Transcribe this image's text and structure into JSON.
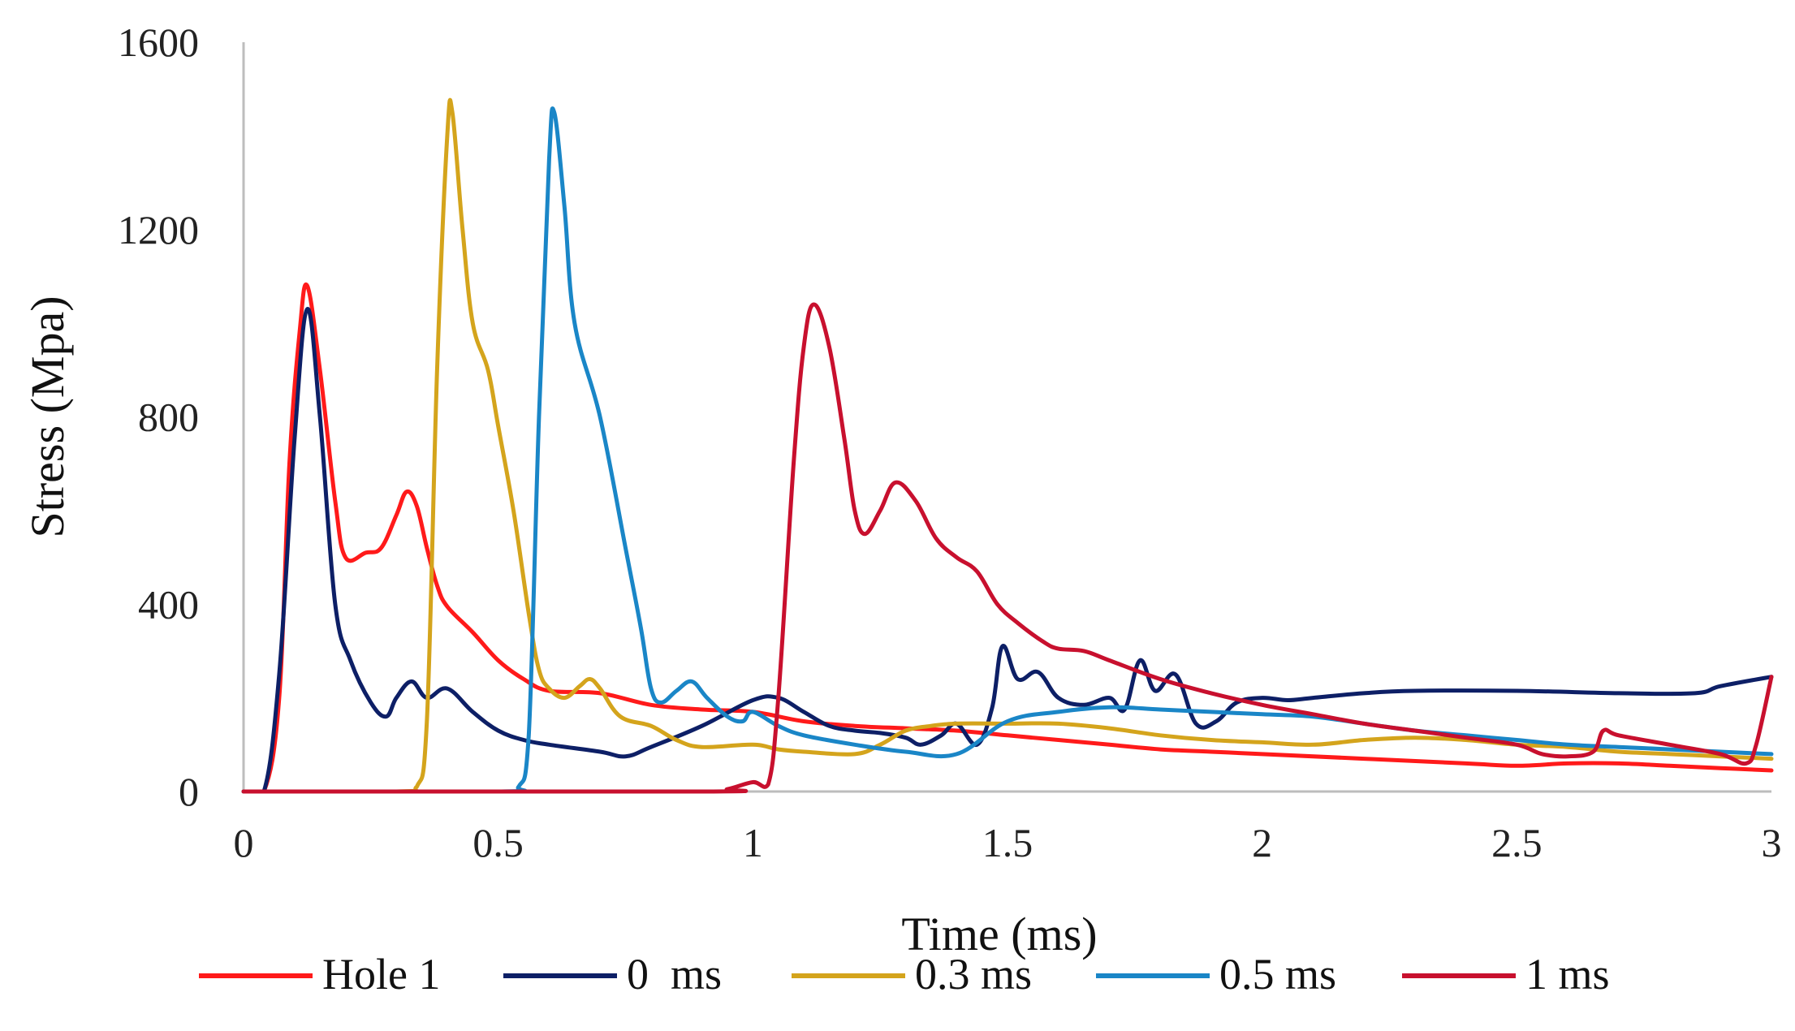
{
  "chart_data": {
    "type": "line",
    "title": "",
    "xlabel": "Time (ms)",
    "ylabel": "Stress (Mpa)",
    "xlim": [
      0,
      3
    ],
    "ylim": [
      0,
      1600
    ],
    "xticks": [
      0,
      0.5,
      1,
      1.5,
      2,
      2.5,
      3
    ],
    "xtick_labels": [
      "0",
      "0.5",
      "1",
      "1.5",
      "2",
      "2.5",
      "3"
    ],
    "yticks": [
      0,
      400,
      800,
      1200,
      1600
    ],
    "ytick_labels": [
      "0",
      "400",
      "800",
      "1200",
      "1600"
    ],
    "grid": false,
    "legend_position": "bottom",
    "series": [
      {
        "name": "Hole 1",
        "color": "#ff1a1a",
        "points": [
          [
            0,
            0
          ],
          [
            0.04,
            0
          ],
          [
            0.07,
            200
          ],
          [
            0.09,
            700
          ],
          [
            0.11,
            980
          ],
          [
            0.125,
            1080
          ],
          [
            0.15,
            900
          ],
          [
            0.18,
            620
          ],
          [
            0.2,
            500
          ],
          [
            0.24,
            510
          ],
          [
            0.27,
            520
          ],
          [
            0.3,
            590
          ],
          [
            0.32,
            640
          ],
          [
            0.34,
            610
          ],
          [
            0.36,
            520
          ],
          [
            0.38,
            440
          ],
          [
            0.4,
            395
          ],
          [
            0.45,
            340
          ],
          [
            0.5,
            280
          ],
          [
            0.55,
            240
          ],
          [
            0.6,
            215
          ],
          [
            0.7,
            210
          ],
          [
            0.8,
            185
          ],
          [
            0.9,
            175
          ],
          [
            1,
            170
          ],
          [
            1.1,
            150
          ],
          [
            1.2,
            140
          ],
          [
            1.3,
            135
          ],
          [
            1.4,
            130
          ],
          [
            1.5,
            120
          ],
          [
            1.6,
            110
          ],
          [
            1.7,
            100
          ],
          [
            1.8,
            90
          ],
          [
            1.9,
            85
          ],
          [
            2,
            80
          ],
          [
            2.2,
            70
          ],
          [
            2.4,
            60
          ],
          [
            2.5,
            55
          ],
          [
            2.6,
            60
          ],
          [
            2.7,
            60
          ],
          [
            2.8,
            55
          ],
          [
            2.9,
            50
          ],
          [
            3,
            45
          ]
        ]
      },
      {
        "name": "0  ms",
        "color": "#0d1f66",
        "points": [
          [
            0,
            0
          ],
          [
            0.04,
            0
          ],
          [
            0.07,
            250
          ],
          [
            0.1,
            750
          ],
          [
            0.125,
            1030
          ],
          [
            0.15,
            800
          ],
          [
            0.18,
            400
          ],
          [
            0.21,
            280
          ],
          [
            0.25,
            190
          ],
          [
            0.28,
            160
          ],
          [
            0.3,
            200
          ],
          [
            0.33,
            235
          ],
          [
            0.36,
            200
          ],
          [
            0.4,
            220
          ],
          [
            0.45,
            170
          ],
          [
            0.5,
            130
          ],
          [
            0.55,
            110
          ],
          [
            0.6,
            100
          ],
          [
            0.7,
            85
          ],
          [
            0.75,
            75
          ],
          [
            0.8,
            95
          ],
          [
            0.9,
            140
          ],
          [
            1,
            195
          ],
          [
            1.05,
            200
          ],
          [
            1.1,
            170
          ],
          [
            1.15,
            140
          ],
          [
            1.2,
            130
          ],
          [
            1.25,
            125
          ],
          [
            1.3,
            115
          ],
          [
            1.33,
            100
          ],
          [
            1.37,
            120
          ],
          [
            1.4,
            145
          ],
          [
            1.44,
            100
          ],
          [
            1.47,
            180
          ],
          [
            1.49,
            310
          ],
          [
            1.52,
            240
          ],
          [
            1.56,
            255
          ],
          [
            1.6,
            200
          ],
          [
            1.65,
            185
          ],
          [
            1.7,
            200
          ],
          [
            1.73,
            175
          ],
          [
            1.76,
            280
          ],
          [
            1.79,
            215
          ],
          [
            1.83,
            250
          ],
          [
            1.87,
            145
          ],
          [
            1.91,
            150
          ],
          [
            1.95,
            190
          ],
          [
            2,
            200
          ],
          [
            2.05,
            195
          ],
          [
            2.1,
            200
          ],
          [
            2.2,
            210
          ],
          [
            2.3,
            215
          ],
          [
            2.5,
            215
          ],
          [
            2.7,
            210
          ],
          [
            2.85,
            210
          ],
          [
            2.9,
            225
          ],
          [
            3,
            245
          ]
        ]
      },
      {
        "name": "0.3 ms",
        "color": "#d4a41c",
        "points": [
          [
            0,
            0
          ],
          [
            0.3,
            0
          ],
          [
            0.34,
            10
          ],
          [
            0.36,
            150
          ],
          [
            0.38,
            900
          ],
          [
            0.4,
            1400
          ],
          [
            0.41,
            1450
          ],
          [
            0.43,
            1200
          ],
          [
            0.45,
            1000
          ],
          [
            0.48,
            900
          ],
          [
            0.5,
            780
          ],
          [
            0.53,
            600
          ],
          [
            0.56,
            380
          ],
          [
            0.58,
            260
          ],
          [
            0.6,
            220
          ],
          [
            0.63,
            200
          ],
          [
            0.66,
            225
          ],
          [
            0.68,
            240
          ],
          [
            0.7,
            220
          ],
          [
            0.74,
            160
          ],
          [
            0.8,
            140
          ],
          [
            0.85,
            110
          ],
          [
            0.9,
            95
          ],
          [
            1,
            100
          ],
          [
            1.05,
            90
          ],
          [
            1.1,
            85
          ],
          [
            1.2,
            80
          ],
          [
            1.25,
            100
          ],
          [
            1.3,
            130
          ],
          [
            1.35,
            140
          ],
          [
            1.4,
            145
          ],
          [
            1.5,
            145
          ],
          [
            1.6,
            145
          ],
          [
            1.7,
            135
          ],
          [
            1.8,
            120
          ],
          [
            1.9,
            110
          ],
          [
            2,
            105
          ],
          [
            2.1,
            100
          ],
          [
            2.2,
            110
          ],
          [
            2.3,
            115
          ],
          [
            2.4,
            110
          ],
          [
            2.5,
            100
          ],
          [
            2.6,
            95
          ],
          [
            2.7,
            85
          ],
          [
            2.8,
            80
          ],
          [
            2.9,
            75
          ],
          [
            3,
            70
          ]
        ]
      },
      {
        "name": "0.5 ms",
        "color": "#1a86c7",
        "points": [
          [
            0,
            0
          ],
          [
            0.5,
            0
          ],
          [
            0.54,
            10
          ],
          [
            0.56,
            120
          ],
          [
            0.58,
            800
          ],
          [
            0.6,
            1350
          ],
          [
            0.61,
            1450
          ],
          [
            0.63,
            1250
          ],
          [
            0.65,
            1000
          ],
          [
            0.7,
            800
          ],
          [
            0.75,
            520
          ],
          [
            0.78,
            350
          ],
          [
            0.8,
            220
          ],
          [
            0.82,
            190
          ],
          [
            0.85,
            215
          ],
          [
            0.88,
            235
          ],
          [
            0.91,
            200
          ],
          [
            0.95,
            160
          ],
          [
            0.98,
            150
          ],
          [
            1,
            170
          ],
          [
            1.05,
            140
          ],
          [
            1.1,
            120
          ],
          [
            1.2,
            100
          ],
          [
            1.3,
            85
          ],
          [
            1.4,
            80
          ],
          [
            1.5,
            150
          ],
          [
            1.6,
            170
          ],
          [
            1.7,
            180
          ],
          [
            1.8,
            175
          ],
          [
            1.9,
            170
          ],
          [
            2,
            165
          ],
          [
            2.1,
            160
          ],
          [
            2.2,
            145
          ],
          [
            2.3,
            130
          ],
          [
            2.4,
            120
          ],
          [
            2.5,
            110
          ],
          [
            2.6,
            100
          ],
          [
            2.7,
            95
          ],
          [
            2.8,
            90
          ],
          [
            2.9,
            85
          ],
          [
            3,
            80
          ]
        ]
      },
      {
        "name": "1 ms",
        "color": "#c8102e",
        "points": [
          [
            0,
            0
          ],
          [
            0.9,
            0
          ],
          [
            0.95,
            5
          ],
          [
            1,
            20
          ],
          [
            1.03,
            15
          ],
          [
            1.05,
            200
          ],
          [
            1.08,
            700
          ],
          [
            1.1,
            950
          ],
          [
            1.12,
            1040
          ],
          [
            1.15,
            950
          ],
          [
            1.18,
            750
          ],
          [
            1.2,
            600
          ],
          [
            1.22,
            550
          ],
          [
            1.25,
            600
          ],
          [
            1.28,
            660
          ],
          [
            1.32,
            620
          ],
          [
            1.36,
            540
          ],
          [
            1.4,
            500
          ],
          [
            1.44,
            470
          ],
          [
            1.48,
            400
          ],
          [
            1.52,
            360
          ],
          [
            1.57,
            320
          ],
          [
            1.6,
            305
          ],
          [
            1.65,
            300
          ],
          [
            1.7,
            280
          ],
          [
            1.8,
            240
          ],
          [
            1.9,
            210
          ],
          [
            2,
            185
          ],
          [
            2.1,
            165
          ],
          [
            2.2,
            145
          ],
          [
            2.3,
            130
          ],
          [
            2.4,
            115
          ],
          [
            2.5,
            100
          ],
          [
            2.55,
            80
          ],
          [
            2.6,
            75
          ],
          [
            2.65,
            85
          ],
          [
            2.67,
            130
          ],
          [
            2.7,
            120
          ],
          [
            2.8,
            100
          ],
          [
            2.9,
            80
          ],
          [
            2.95,
            60
          ],
          [
            2.97,
            100
          ],
          [
            3,
            245
          ]
        ]
      }
    ]
  }
}
